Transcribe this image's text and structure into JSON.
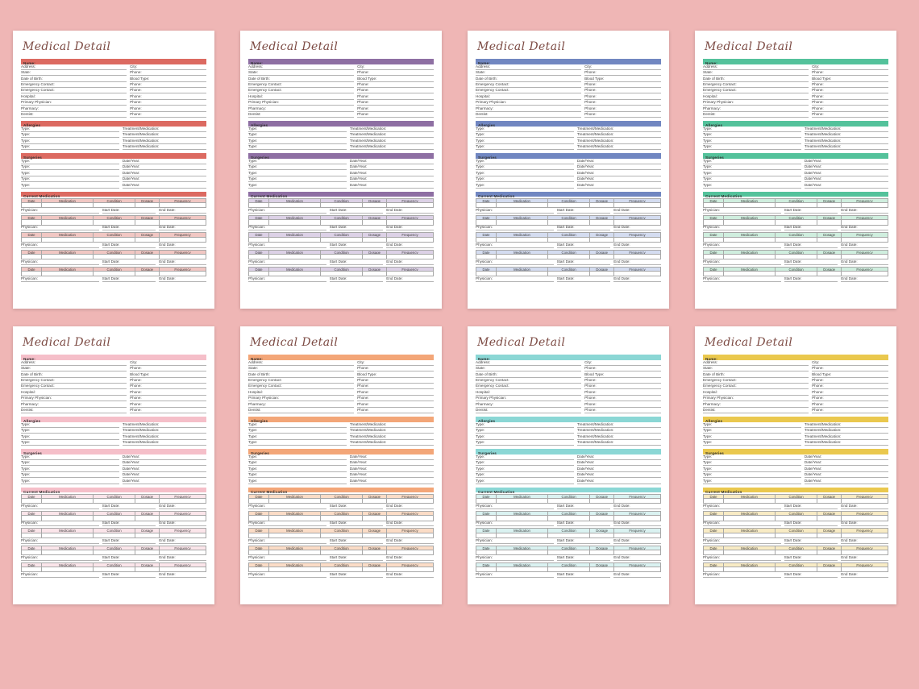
{
  "background_color": "#efb6b5",
  "form": {
    "title": "Medical Detail",
    "title_color": "#7c4a43",
    "name_label": "Name:",
    "personal_rows": [
      {
        "left": "Address:",
        "right": "City:"
      },
      {
        "left": "State:",
        "right": "Phone:"
      },
      {
        "left": "Date of Birth:",
        "right": "Blood Type:"
      },
      {
        "left": "Emergency Contact:",
        "right": "Phone:"
      },
      {
        "left": "Emergency Contact:",
        "right": "Phone:"
      },
      {
        "left": "Hospital:",
        "right": "Phone:"
      },
      {
        "left": "Primary Physician:",
        "right": "Phone:"
      },
      {
        "left": "Pharmacy:",
        "right": "Phone:"
      },
      {
        "left": "Dentist:",
        "right": "Phone:"
      }
    ],
    "allergies": {
      "label": "Allergies",
      "rows": [
        {
          "left": "Type:",
          "right": "Treatment/Medication:"
        },
        {
          "left": "Type:",
          "right": "Treatment/Medication:"
        },
        {
          "left": "Type:",
          "right": "Treatment/Medication:"
        },
        {
          "left": "Type:",
          "right": "Treatment/Medication:"
        }
      ]
    },
    "surgeries": {
      "label": "Surgeries",
      "rows": [
        {
          "left": "Type:",
          "right": "Date/Year:"
        },
        {
          "left": "Type:",
          "right": "Date/Year:"
        },
        {
          "left": "Type:",
          "right": "Date/Year:"
        },
        {
          "left": "Type:",
          "right": "Date/Year:"
        },
        {
          "left": "Type:",
          "right": "Date/Year:"
        }
      ]
    },
    "medication": {
      "label": "Current Medication",
      "columns": [
        "Date",
        "Medication",
        "Condition",
        "Dosage",
        "Frequency"
      ],
      "block_count": 5,
      "physician_label": "Physician:",
      "start_date_label": "Start Date:",
      "end_date_label": "End Date:"
    }
  },
  "themes": [
    {
      "name": "red",
      "primary": "#dc6a61",
      "light": "#f1c7c3"
    },
    {
      "name": "purple",
      "primary": "#8e6fa3",
      "light": "#dcd1e6"
    },
    {
      "name": "blue",
      "primary": "#7187c1",
      "light": "#d4dcf0"
    },
    {
      "name": "green",
      "primary": "#54c29b",
      "light": "#cfeede"
    },
    {
      "name": "pink",
      "primary": "#f5bfc9",
      "light": "#fbe5ea"
    },
    {
      "name": "orange",
      "primary": "#f3a678",
      "light": "#fbdcc6"
    },
    {
      "name": "teal",
      "primary": "#8bd7d5",
      "light": "#daf2f1"
    },
    {
      "name": "yellow",
      "primary": "#eac84e",
      "light": "#f8ebc4"
    }
  ]
}
